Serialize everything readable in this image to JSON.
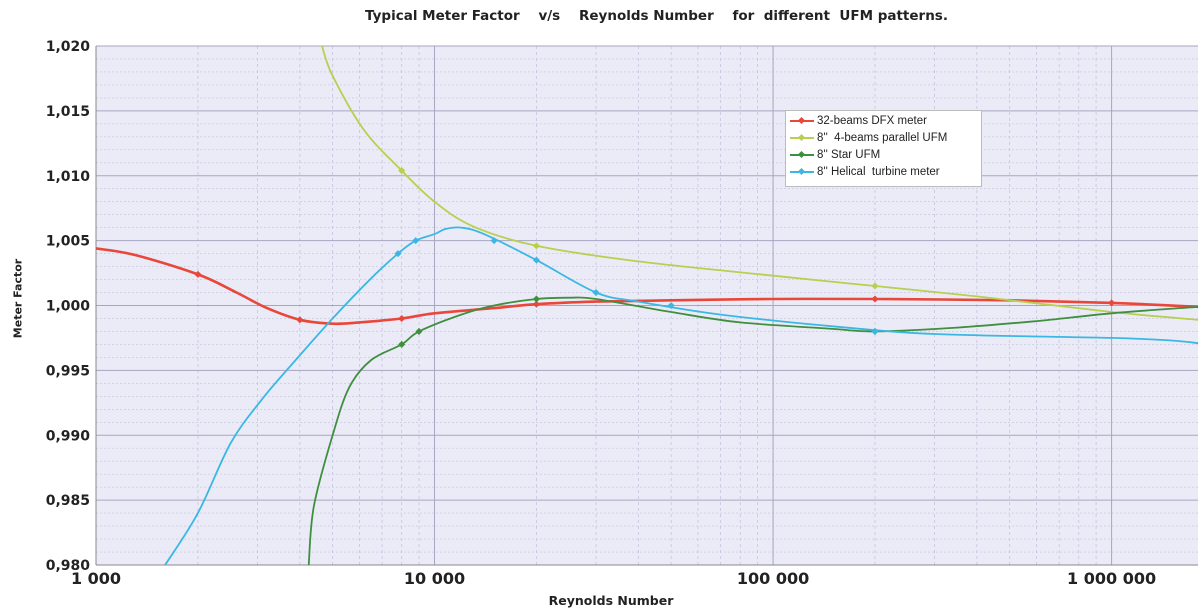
{
  "chart_data": {
    "type": "line",
    "title": "Typical Meter Factor    v/s    Reynolds Number    for  different  UFM patterns.",
    "xlabel": "Reynolds Number",
    "ylabel": "Meter Factor",
    "x_scale": "log",
    "xlim": [
      1000,
      1800000
    ],
    "ylim": [
      0.98,
      1.02
    ],
    "x_ticks": [
      1000,
      10000,
      100000,
      1000000
    ],
    "x_tick_labels": [
      "1 000",
      "10 000",
      "100 000",
      "1 000 000"
    ],
    "y_ticks": [
      0.98,
      0.985,
      0.99,
      0.995,
      1.0,
      1.005,
      1.01,
      1.015,
      1.02
    ],
    "y_tick_labels": [
      "0,980",
      "0,985",
      "0,990",
      "0,995",
      "1,000",
      "1,005",
      "1,010",
      "1,015",
      "1,020"
    ],
    "grid": true,
    "legend_position": "top-right",
    "series": [
      {
        "name": "32-beams DFX meter",
        "color": "#e8473a",
        "points": [
          [
            1000,
            1.0044
          ],
          [
            1300,
            1.0039
          ],
          [
            2000,
            1.0024
          ],
          [
            2600,
            1.001
          ],
          [
            3200,
            0.9998
          ],
          [
            4000,
            0.9989
          ],
          [
            5000,
            0.9986
          ],
          [
            6000,
            0.9987
          ],
          [
            8000,
            0.999
          ],
          [
            10000,
            0.9994
          ],
          [
            15000,
            0.9998
          ],
          [
            20000,
            1.0001
          ],
          [
            30000,
            1.0003
          ],
          [
            50000,
            1.0004
          ],
          [
            100000,
            1.0005
          ],
          [
            200000,
            1.0005
          ],
          [
            500000,
            1.0004
          ],
          [
            1000000,
            1.0002
          ],
          [
            1800000,
            0.9999
          ]
        ],
        "markers": [
          [
            2000,
            1.0024
          ],
          [
            4000,
            0.9989
          ],
          [
            8000,
            0.999
          ],
          [
            20000,
            1.0001
          ],
          [
            200000,
            1.0005
          ],
          [
            1000000,
            1.0002
          ]
        ]
      },
      {
        "name": "8''  4-beams parallel UFM",
        "color": "#b8cf4f",
        "points": [
          [
            4650,
            1.02
          ],
          [
            5000,
            1.0177
          ],
          [
            6200,
            1.0135
          ],
          [
            8000,
            1.0104
          ],
          [
            10000,
            1.008
          ],
          [
            13000,
            1.0061
          ],
          [
            20000,
            1.0046
          ],
          [
            40000,
            1.0034
          ],
          [
            100000,
            1.0023
          ],
          [
            200000,
            1.0015
          ],
          [
            400000,
            1.0007
          ],
          [
            1000000,
            0.9995
          ],
          [
            1800000,
            0.9989
          ]
        ],
        "markers": [
          [
            8000,
            1.0104
          ],
          [
            20000,
            1.0046
          ],
          [
            200000,
            1.0015
          ]
        ]
      },
      {
        "name": "8'' Star UFM",
        "color": "#3f8f3f",
        "points": [
          [
            4250,
            0.98
          ],
          [
            4400,
            0.9845
          ],
          [
            5000,
            0.99
          ],
          [
            5600,
            0.9937
          ],
          [
            6500,
            0.9958
          ],
          [
            8000,
            0.997
          ],
          [
            9000,
            0.998
          ],
          [
            12000,
            0.9993
          ],
          [
            15000,
            1.0
          ],
          [
            20000,
            1.0005
          ],
          [
            25000,
            1.0006
          ],
          [
            30000,
            1.0005
          ],
          [
            50000,
            0.9995
          ],
          [
            80000,
            0.9987
          ],
          [
            150000,
            0.9982
          ],
          [
            200000,
            0.998
          ],
          [
            350000,
            0.9983
          ],
          [
            600000,
            0.9988
          ],
          [
            1000000,
            0.9994
          ],
          [
            1800000,
            0.9999
          ]
        ],
        "markers": [
          [
            8000,
            0.997
          ],
          [
            9000,
            0.998
          ],
          [
            20000,
            1.0005
          ],
          [
            200000,
            0.998
          ]
        ]
      },
      {
        "name": "8'' Helical  turbine meter",
        "color": "#3ab8e3",
        "points": [
          [
            1600,
            0.98
          ],
          [
            2000,
            0.984
          ],
          [
            2500,
            0.9894
          ],
          [
            3100,
            0.9928
          ],
          [
            3800,
            0.9955
          ],
          [
            5000,
            0.999
          ],
          [
            6500,
            1.0021
          ],
          [
            7800,
            1.004
          ],
          [
            8800,
            1.005
          ],
          [
            10000,
            1.0055
          ],
          [
            10800,
            1.0059
          ],
          [
            12000,
            1.006
          ],
          [
            14000,
            1.0055
          ],
          [
            20000,
            1.0035
          ],
          [
            30000,
            1.001
          ],
          [
            40000,
            1.0003
          ],
          [
            70000,
            0.9993
          ],
          [
            150000,
            0.9984
          ],
          [
            300000,
            0.9978
          ],
          [
            1000000,
            0.9975
          ],
          [
            1500000,
            0.9973
          ],
          [
            1800000,
            0.9971
          ]
        ],
        "markers": [
          [
            7800,
            1.004
          ],
          [
            8800,
            1.005
          ],
          [
            15000,
            1.005
          ],
          [
            20000,
            1.0035
          ],
          [
            30000,
            1.001
          ],
          [
            50000,
            1.0
          ],
          [
            200000,
            0.998
          ]
        ]
      }
    ]
  }
}
